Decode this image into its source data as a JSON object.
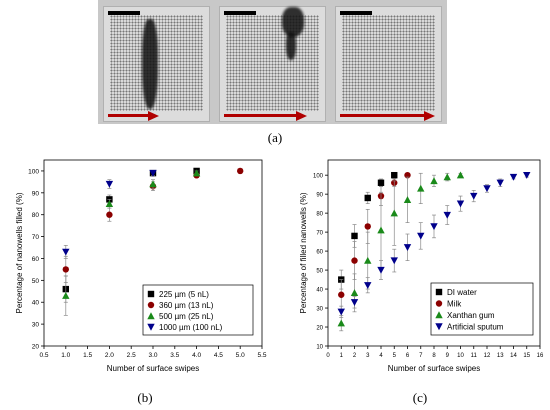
{
  "labels": {
    "a": "(a)",
    "b": "(b)",
    "c": "(c)"
  },
  "chart_data": [
    {
      "type": "scatter",
      "xlabel": "Number of surface swipes",
      "ylabel": "Percentage of nanowells filled (%)",
      "xlim": [
        0.5,
        5.5
      ],
      "ylim": [
        20,
        105
      ],
      "xticks": [
        "0.5",
        "1.0",
        "1.5",
        "2.0",
        "2.5",
        "3.0",
        "3.5",
        "4.0",
        "4.5",
        "5.0",
        "5.5"
      ],
      "yticks": [
        "20",
        "30",
        "40",
        "50",
        "60",
        "70",
        "80",
        "90",
        "100"
      ],
      "legend": "bottom-right",
      "series": [
        {
          "name": "225 µm (5 nL)",
          "color": "#000000",
          "marker": "square",
          "x": [
            1,
            2,
            3,
            4
          ],
          "y": [
            46,
            87,
            99,
            100
          ],
          "err": [
            6,
            2,
            1,
            0.5
          ]
        },
        {
          "name": "360 µm (13 nL)",
          "color": "#8b0000",
          "marker": "circle",
          "x": [
            1,
            2,
            3,
            4,
            5
          ],
          "y": [
            55,
            80,
            93,
            98,
            100
          ],
          "err": [
            6,
            3,
            2,
            1,
            0.5
          ]
        },
        {
          "name": "500 µm (25 nL)",
          "color": "#1a8a1a",
          "marker": "triangle-up",
          "x": [
            1,
            2,
            3,
            4
          ],
          "y": [
            43,
            85,
            94,
            99
          ],
          "err": [
            9,
            2,
            2,
            1
          ]
        },
        {
          "name": "1000 µm (100 nL)",
          "color": "#00008b",
          "marker": "triangle-down",
          "x": [
            1,
            2,
            3
          ],
          "y": [
            63,
            94,
            99
          ],
          "err": [
            3,
            2,
            1
          ]
        }
      ]
    },
    {
      "type": "scatter",
      "xlabel": "Number of surface swipes",
      "ylabel": "Percentage of filled nanowells (%)",
      "xlim": [
        0,
        16
      ],
      "ylim": [
        10,
        108
      ],
      "xticks": [
        "0",
        "1",
        "2",
        "3",
        "4",
        "5",
        "6",
        "7",
        "8",
        "9",
        "10",
        "11",
        "12",
        "13",
        "14",
        "15",
        "16"
      ],
      "yticks": [
        "10",
        "20",
        "30",
        "40",
        "50",
        "60",
        "70",
        "80",
        "90",
        "100"
      ],
      "legend": "bottom-right",
      "series": [
        {
          "name": "DI water",
          "color": "#000000",
          "marker": "square",
          "x": [
            1,
            2,
            3,
            4,
            5
          ],
          "y": [
            45,
            68,
            88,
            96,
            100
          ],
          "err": [
            5,
            6,
            3,
            2,
            1
          ]
        },
        {
          "name": "Milk",
          "color": "#8b0000",
          "marker": "circle",
          "x": [
            1,
            2,
            3,
            4,
            5,
            6
          ],
          "y": [
            37,
            55,
            73,
            89,
            96,
            100
          ],
          "err": [
            8,
            10,
            9,
            5,
            2,
            1
          ]
        },
        {
          "name": "Xanthan gum",
          "color": "#1a8a1a",
          "marker": "triangle-up",
          "x": [
            1,
            2,
            3,
            4,
            5,
            6,
            7,
            8,
            9,
            10
          ],
          "y": [
            22,
            38,
            55,
            71,
            80,
            87,
            93,
            97,
            99,
            100
          ],
          "err": [
            4,
            10,
            15,
            20,
            17,
            12,
            8,
            3,
            2,
            1
          ]
        },
        {
          "name": "Artificial sputum",
          "color": "#00008b",
          "marker": "triangle-down",
          "x": [
            1,
            2,
            3,
            4,
            5,
            6,
            7,
            8,
            9,
            10,
            11,
            12,
            13,
            14,
            15
          ],
          "y": [
            28,
            33,
            42,
            50,
            55,
            62,
            68,
            73,
            79,
            85,
            89,
            93,
            96,
            99,
            100
          ],
          "err": [
            3,
            3,
            4,
            5,
            6,
            7,
            7,
            6,
            5,
            4,
            3,
            2,
            2,
            1,
            1
          ]
        }
      ]
    }
  ]
}
